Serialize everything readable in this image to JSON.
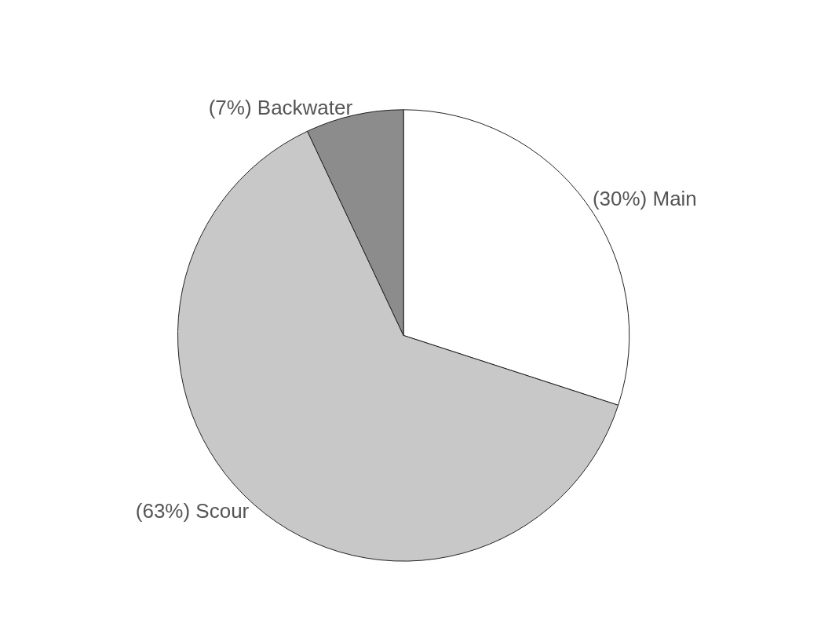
{
  "chart_data": {
    "type": "pie",
    "categories": [
      "Main",
      "Scour",
      "Backwater"
    ],
    "values": [
      30,
      63,
      7
    ],
    "value_labels": [
      "(30%)",
      "(63%)",
      "(7%)"
    ],
    "colors": [
      "#ffffff",
      "#c8c8c8",
      "#8c8c8c"
    ],
    "legend": false
  }
}
